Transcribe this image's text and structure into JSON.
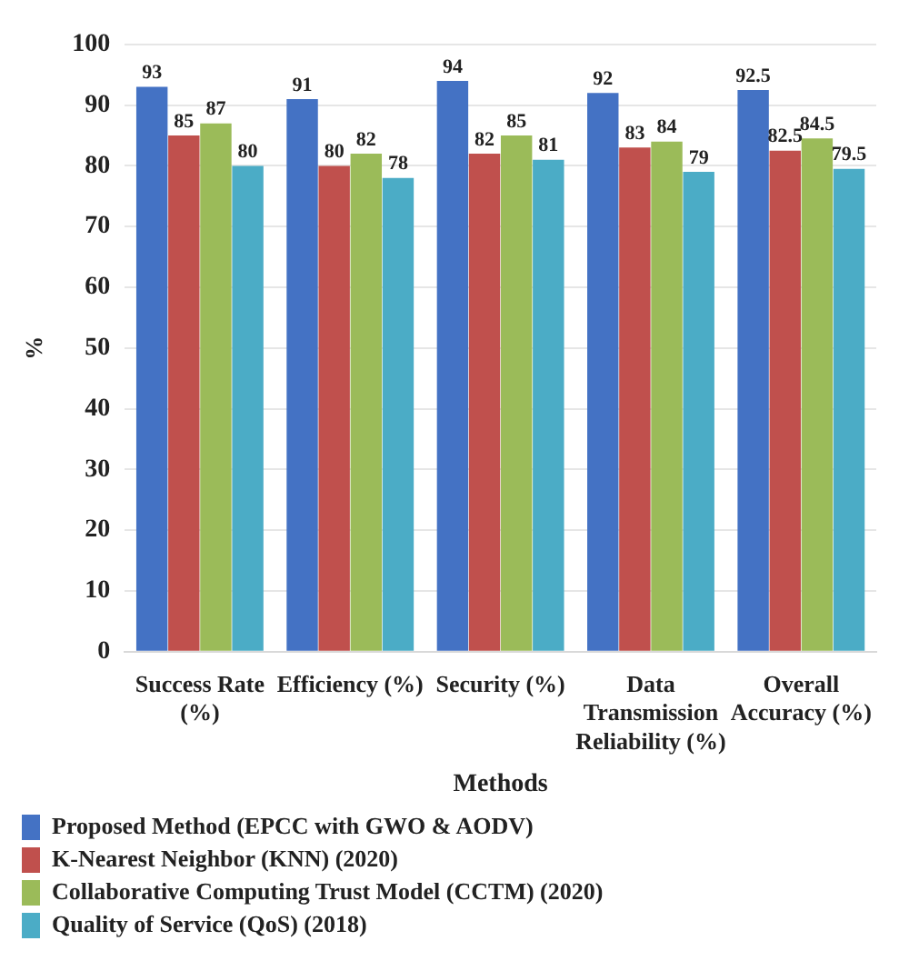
{
  "chart_data": {
    "type": "bar",
    "xlabel": "Methods",
    "ylabel": "%",
    "categories": [
      "Success Rate (%)",
      "Efficiency (%)",
      "Security (%)",
      "Data Transmission Reliability (%)",
      "Overall Accuracy (%)"
    ],
    "series": [
      {
        "name": "Proposed Method (EPCC with GWO & AODV)",
        "color": "#4472c4",
        "values": [
          93,
          91,
          94,
          92,
          92.5
        ]
      },
      {
        "name": "K-Nearest Neighbor (KNN) (2020)",
        "color": "#c0504d",
        "values": [
          85,
          80,
          82,
          83,
          82.5
        ]
      },
      {
        "name": "Collaborative Computing Trust Model (CCTM) (2020)",
        "color": "#9bbb59",
        "values": [
          87,
          82,
          85,
          84,
          84.5
        ]
      },
      {
        "name": "Quality of Service (QoS) (2018)",
        "color": "#4bacc6",
        "values": [
          80,
          78,
          81,
          79,
          79.5
        ]
      }
    ],
    "ylim": [
      0,
      100
    ],
    "yticks": [
      0,
      10,
      20,
      30,
      40,
      50,
      60,
      70,
      80,
      90,
      100
    ],
    "grid": "y",
    "legend": "bottom",
    "data_labels": true
  }
}
